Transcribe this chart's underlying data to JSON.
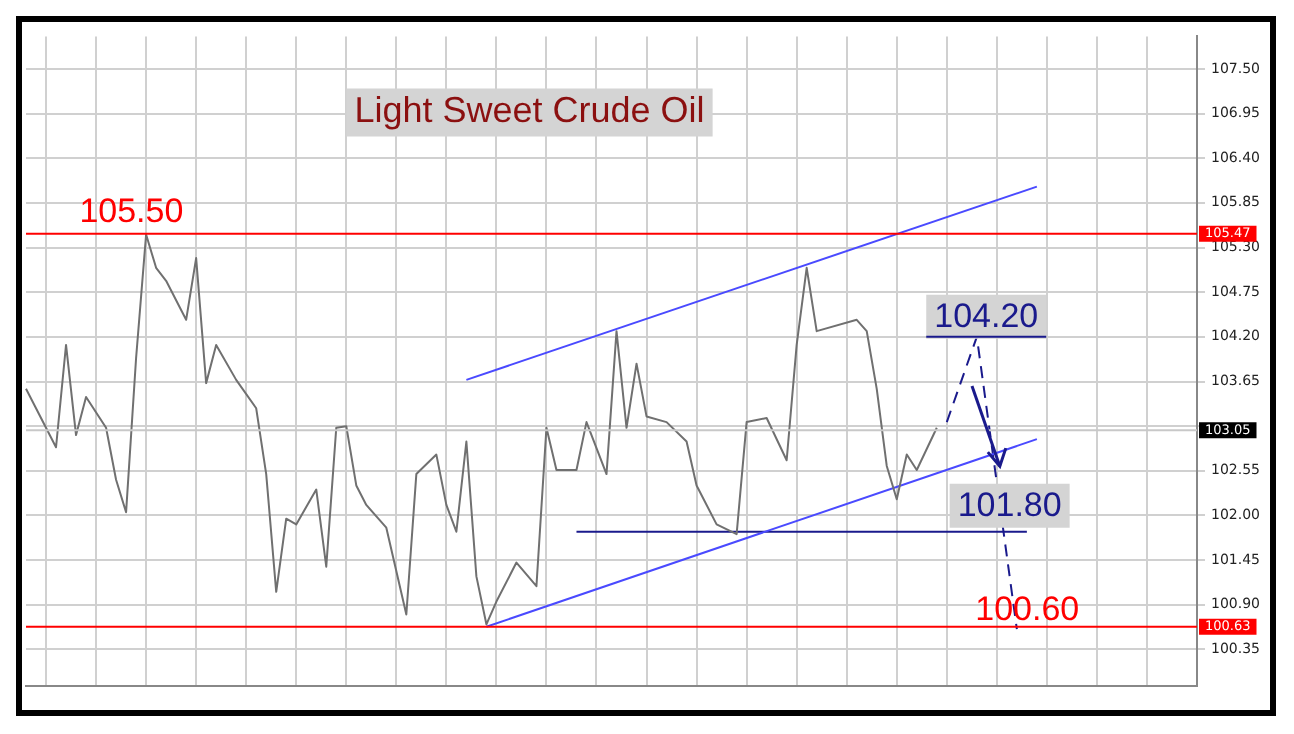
{
  "chart_data": {
    "type": "line",
    "title": "Light Sweet Crude Oil",
    "ylim": [
      99.9,
      107.9
    ],
    "categories": [
      null,
      null,
      null,
      null,
      null,
      null,
      null,
      null,
      null,
      null,
      null,
      null,
      null,
      null,
      null,
      null,
      null,
      null,
      null,
      null,
      null,
      null,
      null,
      null,
      null,
      null,
      null,
      null,
      null,
      null,
      null,
      null,
      null,
      null,
      null,
      null,
      null,
      null,
      null,
      null,
      null,
      null,
      null,
      null,
      null,
      null,
      null,
      null,
      null,
      null,
      null,
      null,
      null,
      null,
      null,
      null,
      null,
      null,
      null,
      null,
      null,
      null,
      null,
      null,
      null,
      null,
      null,
      null,
      null,
      null,
      null,
      null,
      null,
      null,
      null,
      null,
      null,
      null,
      null,
      null,
      null,
      null,
      null,
      null,
      null,
      null,
      null,
      null,
      null,
      null,
      null,
      null,
      null,
      null,
      null,
      null,
      null,
      null,
      null,
      null,
      null,
      null,
      null,
      null,
      null,
      null,
      null,
      null,
      null,
      null,
      null,
      null,
      null,
      null,
      null,
      null,
      null,
      null
    ],
    "yticks": [
      100.35,
      {
        "value": 100.9,
        "label": "100.90"
      },
      101.45,
      {
        "value": 102,
        "label": "102.00"
      },
      102.55,
      {
        "value": 103.1,
        "label": null
      },
      103.65,
      {
        "value": 104.2,
        "label": "104.20"
      },
      104.75,
      {
        "value": 105.3,
        "label": "105.30"
      },
      105.85,
      {
        "value": 106.4,
        "label": "106.40"
      },
      106.95,
      {
        "value": 107.5,
        "label": "107.50"
      }
    ],
    "tick_labels": "y",
    "grid": true,
    "legend": false,
    "marker": "none",
    "series": [
      {
        "color": "#707070",
        "values": [
          103.56,
          null,
          null,
          102.84,
          104.1,
          102.99,
          103.46,
          null,
          103.08,
          102.44,
          102.04,
          103.94,
          105.46,
          105.05,
          104.89,
          null,
          104.41,
          105.17,
          103.63,
          104.1,
          null,
          103.67,
          null,
          103.32,
          102.51,
          101.06,
          101.96,
          101.89,
          null,
          102.32,
          101.37,
          103.08,
          103.1,
          102.37,
          102.13,
          null,
          101.85,
          null,
          100.78,
          102.51,
          null,
          102.75,
          102.13,
          101.8,
          102.91,
          101.25,
          100.66,
          100.94,
          null,
          101.42,
          null,
          101.13,
          103.08,
          102.56,
          null,
          102.56,
          103.15,
          null,
          102.51,
          104.27,
          103.08,
          103.87,
          103.22,
          null,
          103.15,
          null,
          102.91,
          102.37,
          null,
          101.89,
          null,
          101.77,
          103.15,
          null,
          103.2,
          null,
          102.68,
          104.1,
          105.05,
          104.27,
          null,
          null,
          null,
          104.41,
          104.27,
          103.56,
          102.61,
          102.2,
          102.75,
          102.56,
          null,
          103.08,
          null,
          null,
          null,
          null,
          null,
          null,
          null,
          null,
          null,
          null,
          null,
          null,
          null,
          null,
          null,
          null,
          null,
          null,
          null,
          null,
          null,
          null,
          null,
          null,
          null,
          null
        ]
      },
      {
        "color": "#4a4aff",
        "values": [
          null,
          null,
          null,
          null,
          null,
          null,
          null,
          null,
          null,
          null,
          null,
          null,
          null,
          null,
          null,
          null,
          null,
          null,
          null,
          null,
          null,
          null,
          null,
          null,
          null,
          null,
          null,
          null,
          null,
          null,
          null,
          null,
          null,
          null,
          null,
          null,
          null,
          null,
          null,
          null,
          null,
          null,
          null,
          null,
          103.67,
          null,
          null,
          null,
          null,
          null,
          null,
          null,
          null,
          null,
          null,
          null,
          null,
          null,
          null,
          null,
          null,
          null,
          null,
          null,
          null,
          null,
          null,
          null,
          null,
          null,
          null,
          null,
          null,
          null,
          null,
          null,
          null,
          null,
          null,
          null,
          null,
          null,
          null,
          null,
          null,
          null,
          null,
          null,
          null,
          null,
          null,
          null,
          null,
          null,
          null,
          null,
          null,
          null,
          null,
          null,
          null,
          106.05,
          null,
          null,
          null,
          null,
          null,
          null,
          null,
          null,
          null,
          null,
          null,
          null,
          null,
          null,
          null,
          null
        ]
      },
      {
        "color": "#4a4aff",
        "values": [
          null,
          null,
          null,
          null,
          null,
          null,
          null,
          null,
          null,
          null,
          null,
          null,
          null,
          null,
          null,
          null,
          null,
          null,
          null,
          null,
          null,
          null,
          null,
          null,
          null,
          null,
          null,
          null,
          null,
          null,
          null,
          null,
          null,
          null,
          null,
          null,
          null,
          null,
          null,
          null,
          null,
          null,
          null,
          null,
          null,
          null,
          100.63,
          null,
          null,
          null,
          null,
          null,
          null,
          null,
          null,
          null,
          null,
          null,
          null,
          null,
          null,
          null,
          null,
          null,
          null,
          null,
          null,
          null,
          null,
          null,
          null,
          null,
          null,
          null,
          null,
          null,
          null,
          null,
          null,
          null,
          null,
          null,
          null,
          null,
          null,
          null,
          null,
          null,
          null,
          null,
          null,
          null,
          null,
          null,
          null,
          null,
          null,
          null,
          null,
          null,
          null,
          102.94,
          null,
          null,
          null,
          null,
          null,
          null,
          null,
          null,
          null,
          null,
          null,
          null,
          null,
          null,
          null,
          null
        ]
      },
      {
        "color": "#1a1a8c",
        "values": [
          null,
          null,
          null,
          null,
          null,
          null,
          null,
          null,
          null,
          null,
          null,
          null,
          null,
          null,
          null,
          null,
          null,
          null,
          null,
          null,
          null,
          null,
          null,
          null,
          null,
          null,
          null,
          null,
          null,
          null,
          null,
          null,
          null,
          null,
          null,
          null,
          null,
          null,
          null,
          null,
          null,
          null,
          null,
          null,
          null,
          null,
          null,
          null,
          null,
          null,
          null,
          null,
          null,
          null,
          null,
          101.8,
          null,
          null,
          null,
          null,
          null,
          null,
          null,
          null,
          null,
          null,
          null,
          null,
          null,
          null,
          null,
          null,
          null,
          null,
          null,
          null,
          null,
          null,
          null,
          null,
          null,
          null,
          null,
          null,
          null,
          null,
          null,
          null,
          null,
          null,
          null,
          null,
          null,
          null,
          null,
          null,
          null,
          null,
          null,
          null,
          101.8,
          null,
          null,
          null,
          null,
          null,
          null,
          null,
          null,
          null,
          null,
          null,
          null,
          null,
          null,
          null,
          null,
          null
        ]
      },
      {
        "color": "#1a1a8c",
        "line_style": "dashed",
        "values": [
          null,
          null,
          null,
          null,
          null,
          null,
          null,
          null,
          null,
          null,
          null,
          null,
          null,
          null,
          null,
          null,
          null,
          null,
          null,
          null,
          null,
          null,
          null,
          null,
          null,
          null,
          null,
          null,
          null,
          null,
          null,
          null,
          null,
          null,
          null,
          null,
          null,
          null,
          null,
          null,
          null,
          null,
          null,
          null,
          null,
          null,
          null,
          null,
          null,
          null,
          null,
          null,
          null,
          null,
          null,
          null,
          null,
          null,
          null,
          null,
          null,
          null,
          null,
          null,
          null,
          null,
          null,
          null,
          null,
          null,
          null,
          null,
          null,
          null,
          null,
          null,
          null,
          null,
          null,
          null,
          null,
          null,
          null,
          null,
          null,
          null,
          null,
          null,
          null,
          null,
          null,
          null,
          103.15,
          null,
          null,
          104.2,
          null,
          null,
          null,
          100.6,
          null,
          null,
          null,
          null,
          null,
          null,
          null,
          null,
          null,
          null,
          null,
          null,
          null,
          null,
          null,
          null,
          null,
          null
        ]
      }
    ],
    "ref_lines": [
      {
        "axis": "y",
        "value": 105.47,
        "label": "105.47",
        "color": "#ff0000"
      },
      {
        "axis": "y",
        "value": 100.63,
        "label": "100.63",
        "color": "#ff0000"
      },
      {
        "axis": "y",
        "value": 103.05,
        "label": "103.05",
        "color": "#c8c8c8"
      }
    ],
    "annotations": [
      {
        "text": "105.50",
        "y": 105.5
      },
      {
        "text": "104.20",
        "y": 104.2
      },
      {
        "text": "101.80",
        "y": 101.8
      },
      {
        "text": "100.60",
        "y": 100.6
      }
    ]
  }
}
